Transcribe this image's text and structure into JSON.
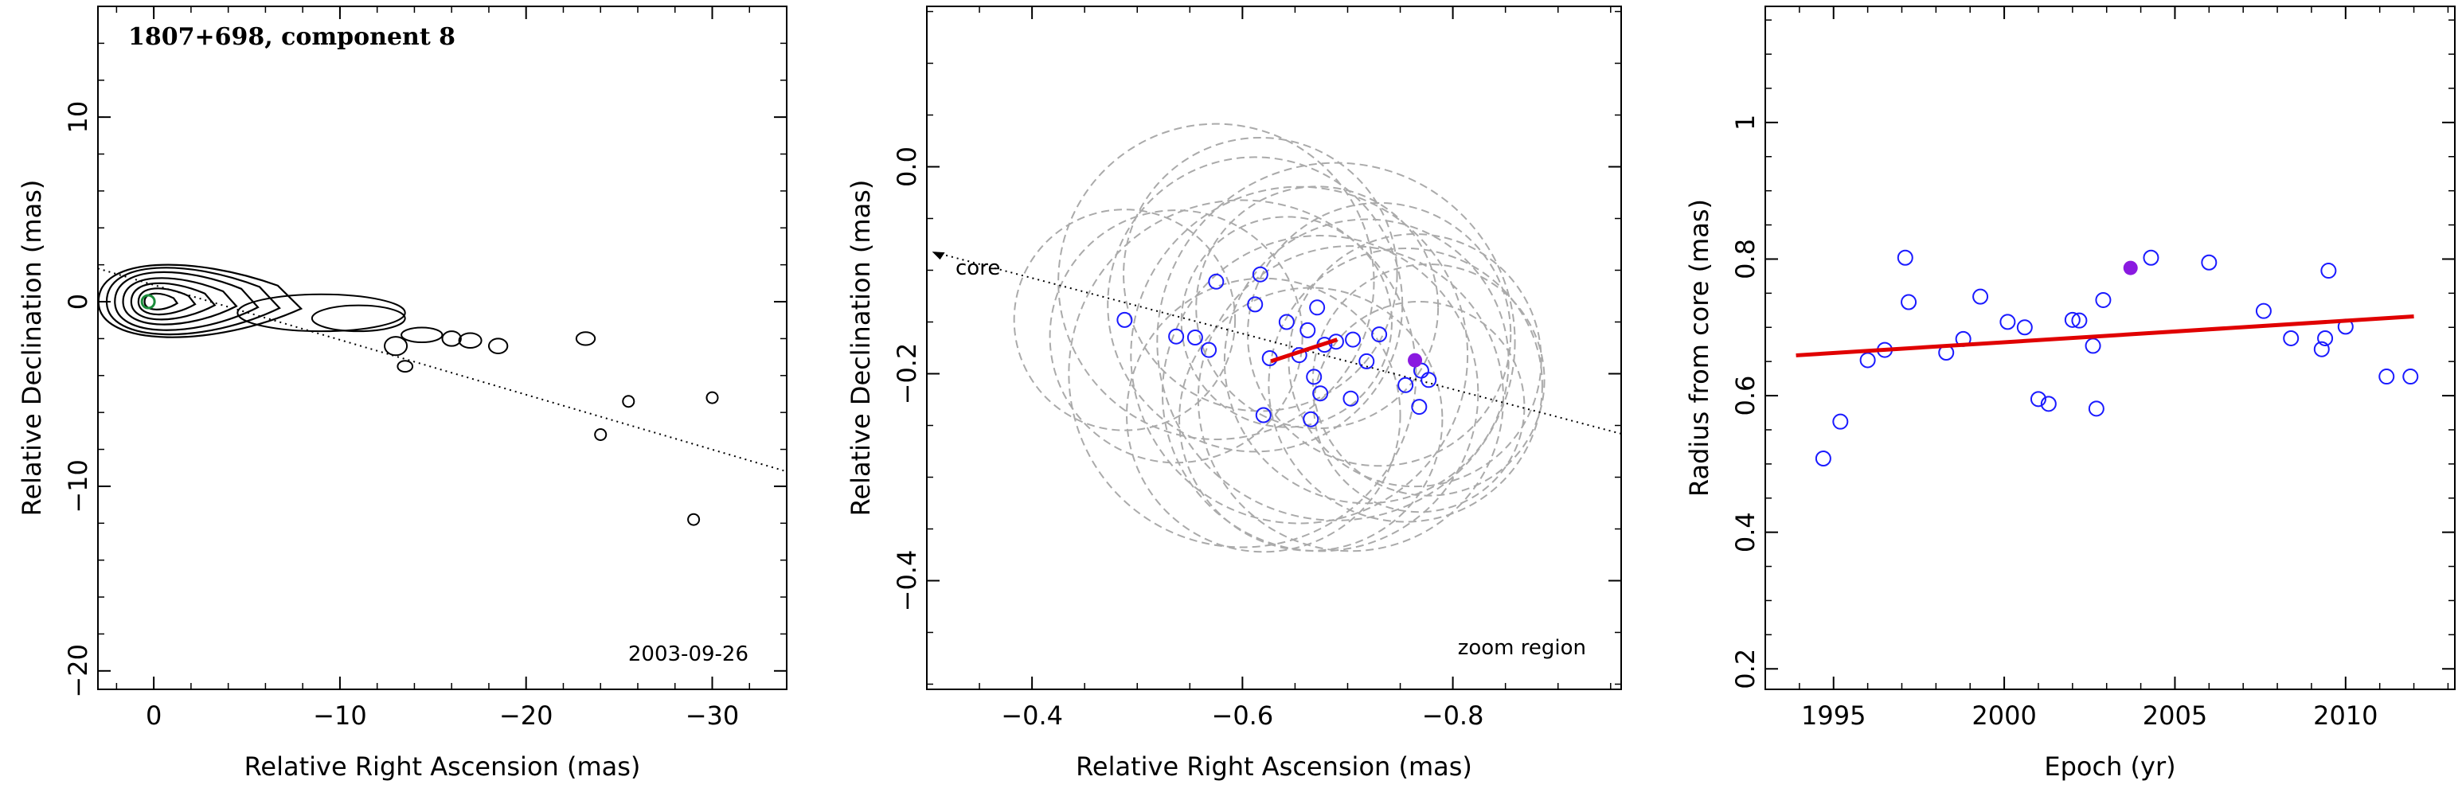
{
  "chart_data": [
    {
      "type": "contour",
      "title": "1807+698, component 8",
      "date": "2003-09-26",
      "xlabel": "Relative Right Ascension (mas)",
      "ylabel": "Relative Declination (mas)",
      "xlim": [
        3,
        -34
      ],
      "ylim": [
        -21,
        16
      ],
      "xticks": [
        0,
        -10,
        -20,
        -30
      ],
      "yticks": [
        -20,
        -10,
        0,
        10
      ],
      "jet_axis_line": {
        "x": [
          3,
          -34
        ],
        "y": [
          1.8,
          -9.2
        ]
      },
      "core_marker": {
        "x": 0.3,
        "y": 0
      },
      "core_marker_color": "#1a8c3a",
      "contour_color": "#000000",
      "contour_levels_core": [
        {
          "rx": 0.9,
          "ry": 0.55
        },
        {
          "rx": 1.5,
          "ry": 0.9
        },
        {
          "rx": 2.2,
          "ry": 1.25
        },
        {
          "rx": 3.0,
          "ry": 1.6
        },
        {
          "rx": 3.8,
          "ry": 2.0
        },
        {
          "rx": 4.6,
          "ry": 2.3
        },
        {
          "rx": 5.4,
          "ry": 2.5
        }
      ],
      "jet_blobs": [
        {
          "x": -9.0,
          "y": -0.6,
          "rx": 4.5,
          "ry": 1.0
        },
        {
          "x": -11.0,
          "y": -0.9,
          "rx": 2.5,
          "ry": 0.7
        },
        {
          "x": -13.0,
          "y": -2.4,
          "rx": 0.6,
          "ry": 0.5
        },
        {
          "x": -14.4,
          "y": -1.8,
          "rx": 1.1,
          "ry": 0.4
        },
        {
          "x": -16.0,
          "y": -2.0,
          "rx": 0.5,
          "ry": 0.4
        },
        {
          "x": -17.0,
          "y": -2.1,
          "rx": 0.6,
          "ry": 0.4
        },
        {
          "x": -18.5,
          "y": -2.4,
          "rx": 0.5,
          "ry": 0.4
        },
        {
          "x": -13.5,
          "y": -3.5,
          "rx": 0.4,
          "ry": 0.3
        },
        {
          "x": -23.2,
          "y": -2.0,
          "rx": 0.5,
          "ry": 0.35
        },
        {
          "x": -25.5,
          "y": -5.4,
          "rx": 0.3,
          "ry": 0.3
        },
        {
          "x": -30.0,
          "y": -5.2,
          "rx": 0.3,
          "ry": 0.3
        },
        {
          "x": -24.0,
          "y": -7.2,
          "rx": 0.3,
          "ry": 0.3
        },
        {
          "x": -29.0,
          "y": -11.8,
          "rx": 0.3,
          "ry": 0.3
        }
      ],
      "frame_color": "#000000"
    },
    {
      "type": "scatter",
      "label": "zoom region",
      "xlabel": "Relative Right Ascension (mas)",
      "ylabel": "Relative Declination (mas)",
      "xlim": [
        -0.3,
        -0.96
      ],
      "ylim": [
        -0.505,
        0.155
      ],
      "xticks": [
        -0.4,
        -0.6,
        -0.8
      ],
      "yticks": [
        -0.4,
        -0.2,
        0
      ],
      "core_arrow_label": "core",
      "core_arrow": {
        "x0": -0.96,
        "y0": -0.258,
        "x1": -0.305,
        "y1": -0.082
      },
      "fit_line": {
        "x": [
          -0.627,
          -0.69
        ],
        "y": [
          -0.188,
          -0.167
        ]
      },
      "fit_line_color": "#e00000",
      "marker_color": "#1a1aff",
      "highlight_color": "#8a1ae0",
      "ellipse_color": "#aaaaaa",
      "points": [
        {
          "x": -0.488,
          "y": -0.148
        },
        {
          "x": -0.537,
          "y": -0.164
        },
        {
          "x": -0.555,
          "y": -0.165
        },
        {
          "x": -0.568,
          "y": -0.177
        },
        {
          "x": -0.575,
          "y": -0.111
        },
        {
          "x": -0.612,
          "y": -0.133
        },
        {
          "x": -0.617,
          "y": -0.104
        },
        {
          "x": -0.62,
          "y": -0.24
        },
        {
          "x": -0.626,
          "y": -0.185
        },
        {
          "x": -0.642,
          "y": -0.15
        },
        {
          "x": -0.654,
          "y": -0.182
        },
        {
          "x": -0.662,
          "y": -0.158
        },
        {
          "x": -0.665,
          "y": -0.244
        },
        {
          "x": -0.668,
          "y": -0.203
        },
        {
          "x": -0.671,
          "y": -0.136
        },
        {
          "x": -0.674,
          "y": -0.219
        },
        {
          "x": -0.678,
          "y": -0.172
        },
        {
          "x": -0.689,
          "y": -0.169
        },
        {
          "x": -0.703,
          "y": -0.224
        },
        {
          "x": -0.705,
          "y": -0.167
        },
        {
          "x": -0.718,
          "y": -0.188
        },
        {
          "x": -0.73,
          "y": -0.162
        },
        {
          "x": -0.755,
          "y": -0.211
        },
        {
          "x": -0.77,
          "y": -0.197
        },
        {
          "x": -0.768,
          "y": -0.232
        },
        {
          "x": -0.777,
          "y": -0.206
        }
      ],
      "highlight_point": {
        "x": -0.764,
        "y": -0.187
      },
      "ellipses": [
        {
          "x": -0.488,
          "y": -0.148,
          "r": 0.105
        },
        {
          "x": -0.537,
          "y": -0.164,
          "r": 0.12
        },
        {
          "x": -0.575,
          "y": -0.111,
          "r": 0.15
        },
        {
          "x": -0.612,
          "y": -0.133,
          "r": 0.14
        },
        {
          "x": -0.617,
          "y": -0.104,
          "r": 0.13
        },
        {
          "x": -0.62,
          "y": -0.24,
          "r": 0.13
        },
        {
          "x": -0.654,
          "y": -0.182,
          "r": 0.16
        },
        {
          "x": -0.665,
          "y": -0.244,
          "r": 0.125
        },
        {
          "x": -0.671,
          "y": -0.136,
          "r": 0.115
        },
        {
          "x": -0.674,
          "y": -0.219,
          "r": 0.15
        },
        {
          "x": -0.689,
          "y": -0.169,
          "r": 0.17
        },
        {
          "x": -0.703,
          "y": -0.224,
          "r": 0.145
        },
        {
          "x": -0.718,
          "y": -0.188,
          "r": 0.135
        },
        {
          "x": -0.73,
          "y": -0.162,
          "r": 0.125
        },
        {
          "x": -0.755,
          "y": -0.211,
          "r": 0.13
        },
        {
          "x": -0.768,
          "y": -0.232,
          "r": 0.1
        },
        {
          "x": -0.777,
          "y": -0.206,
          "r": 0.11
        },
        {
          "x": -0.642,
          "y": -0.15,
          "r": 0.1
        },
        {
          "x": -0.764,
          "y": -0.187,
          "r": 0.12
        },
        {
          "x": -0.6,
          "y": -0.2,
          "r": 0.165
        }
      ]
    },
    {
      "type": "scatter",
      "xlabel": "Epoch (yr)",
      "ylabel": "Radius from core (mas)",
      "xlim": [
        1993,
        2013.2
      ],
      "ylim": [
        0.17,
        1.17
      ],
      "xticks": [
        1995,
        2000,
        2005,
        2010
      ],
      "yticks": [
        0.2,
        0.4,
        0.6,
        0.8,
        1
      ],
      "marker_color": "#1a1aff",
      "highlight_color": "#8a1ae0",
      "fit_line_color": "#e00000",
      "fit_line": {
        "x": [
          1993.9,
          2012.0
        ],
        "y": [
          0.659,
          0.716
        ]
      },
      "points": [
        {
          "x": 1994.7,
          "y": 0.508
        },
        {
          "x": 1995.2,
          "y": 0.562
        },
        {
          "x": 1996.0,
          "y": 0.652
        },
        {
          "x": 1996.5,
          "y": 0.667
        },
        {
          "x": 1997.1,
          "y": 0.802
        },
        {
          "x": 1997.2,
          "y": 0.737
        },
        {
          "x": 1998.3,
          "y": 0.663
        },
        {
          "x": 1998.8,
          "y": 0.683
        },
        {
          "x": 1999.3,
          "y": 0.745
        },
        {
          "x": 2000.1,
          "y": 0.708
        },
        {
          "x": 2000.6,
          "y": 0.7
        },
        {
          "x": 2001.0,
          "y": 0.595
        },
        {
          "x": 2001.3,
          "y": 0.588
        },
        {
          "x": 2002.0,
          "y": 0.711
        },
        {
          "x": 2002.2,
          "y": 0.71
        },
        {
          "x": 2002.6,
          "y": 0.673
        },
        {
          "x": 2002.7,
          "y": 0.581
        },
        {
          "x": 2002.9,
          "y": 0.74
        },
        {
          "x": 2004.3,
          "y": 0.802
        },
        {
          "x": 2006.0,
          "y": 0.795
        },
        {
          "x": 2007.6,
          "y": 0.724
        },
        {
          "x": 2008.4,
          "y": 0.684
        },
        {
          "x": 2009.3,
          "y": 0.668
        },
        {
          "x": 2009.4,
          "y": 0.684
        },
        {
          "x": 2009.5,
          "y": 0.783
        },
        {
          "x": 2010.0,
          "y": 0.701
        },
        {
          "x": 2011.2,
          "y": 0.628
        },
        {
          "x": 2011.9,
          "y": 0.628
        }
      ],
      "highlight_point": {
        "x": 2003.7,
        "y": 0.787
      }
    }
  ]
}
